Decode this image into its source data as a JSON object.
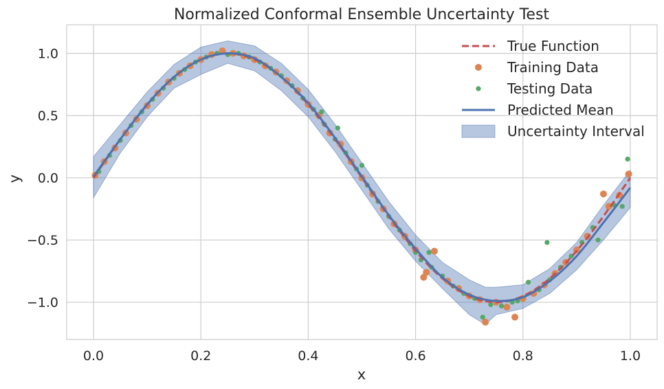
{
  "chart_data": {
    "type": "line",
    "title": "Normalized Conformal Ensemble Uncertainty Test",
    "xlabel": "x",
    "ylabel": "y",
    "xlim": [
      -0.05,
      1.05
    ],
    "ylim": [
      -1.3,
      1.23
    ],
    "xticks": [
      0.0,
      0.2,
      0.4,
      0.6,
      0.8,
      1.0
    ],
    "xtick_labels": [
      "0.0",
      "0.2",
      "0.4",
      "0.6",
      "0.8",
      "1.0"
    ],
    "yticks": [
      -1.0,
      -0.5,
      0.0,
      0.5,
      1.0
    ],
    "ytick_labels": [
      "−1.0",
      "−0.5",
      "0.0",
      "0.5",
      "1.0"
    ],
    "grid": true,
    "legend_position": "top-right",
    "colors": {
      "true_function": "#c44e52",
      "training": "#dd8452",
      "testing": "#55a868",
      "predicted": "#4c72b0",
      "band": "#4c72b0"
    },
    "series": [
      {
        "name": "True Function",
        "kind": "dashed-line",
        "function": "sin(2*pi*x)",
        "samples": 200
      },
      {
        "name": "Training Data",
        "kind": "scatter",
        "points": [
          [
            0.003,
            0.02
          ],
          [
            0.02,
            0.13
          ],
          [
            0.04,
            0.24
          ],
          [
            0.06,
            0.36
          ],
          [
            0.08,
            0.47
          ],
          [
            0.1,
            0.58
          ],
          [
            0.12,
            0.68
          ],
          [
            0.14,
            0.77
          ],
          [
            0.16,
            0.84
          ],
          [
            0.18,
            0.9
          ],
          [
            0.2,
            0.95
          ],
          [
            0.22,
            0.99
          ],
          [
            0.24,
            1.02
          ],
          [
            0.26,
            1.0
          ],
          [
            0.28,
            0.98
          ],
          [
            0.3,
            0.95
          ],
          [
            0.32,
            0.9
          ],
          [
            0.34,
            0.85
          ],
          [
            0.36,
            0.78
          ],
          [
            0.38,
            0.7
          ],
          [
            0.4,
            0.59
          ],
          [
            0.42,
            0.5
          ],
          [
            0.44,
            0.36
          ],
          [
            0.46,
            0.27
          ],
          [
            0.48,
            0.13
          ],
          [
            0.5,
            0.0
          ],
          [
            0.52,
            -0.13
          ],
          [
            0.54,
            -0.25
          ],
          [
            0.56,
            -0.37
          ],
          [
            0.58,
            -0.47
          ],
          [
            0.6,
            -0.58
          ],
          [
            0.615,
            -0.8
          ],
          [
            0.62,
            -0.76
          ],
          [
            0.635,
            -0.59
          ],
          [
            0.66,
            -0.83
          ],
          [
            0.68,
            -0.89
          ],
          [
            0.7,
            -0.95
          ],
          [
            0.72,
            -0.98
          ],
          [
            0.73,
            -1.16
          ],
          [
            0.75,
            -1.0
          ],
          [
            0.77,
            -1.04
          ],
          [
            0.785,
            -1.12
          ],
          [
            0.8,
            -0.97
          ],
          [
            0.82,
            -0.93
          ],
          [
            0.84,
            -0.86
          ],
          [
            0.86,
            -0.77
          ],
          [
            0.88,
            -0.68
          ],
          [
            0.9,
            -0.58
          ],
          [
            0.92,
            -0.47
          ],
          [
            0.95,
            -0.13
          ],
          [
            0.96,
            -0.23
          ],
          [
            0.98,
            -0.14
          ],
          [
            0.997,
            0.03
          ]
        ]
      },
      {
        "name": "Testing Data",
        "kind": "scatter",
        "points": [
          [
            0.01,
            0.05
          ],
          [
            0.03,
            0.18
          ],
          [
            0.05,
            0.3
          ],
          [
            0.07,
            0.42
          ],
          [
            0.09,
            0.53
          ],
          [
            0.11,
            0.63
          ],
          [
            0.13,
            0.72
          ],
          [
            0.15,
            0.8
          ],
          [
            0.17,
            0.87
          ],
          [
            0.19,
            0.93
          ],
          [
            0.21,
            0.97
          ],
          [
            0.23,
            1.0
          ],
          [
            0.25,
            0.99
          ],
          [
            0.27,
            1.0
          ],
          [
            0.29,
            0.97
          ],
          [
            0.31,
            0.93
          ],
          [
            0.33,
            0.88
          ],
          [
            0.35,
            0.82
          ],
          [
            0.37,
            0.74
          ],
          [
            0.39,
            0.64
          ],
          [
            0.41,
            0.55
          ],
          [
            0.425,
            0.53
          ],
          [
            0.43,
            0.43
          ],
          [
            0.45,
            0.31
          ],
          [
            0.455,
            0.4
          ],
          [
            0.47,
            0.2
          ],
          [
            0.49,
            0.07
          ],
          [
            0.5,
            0.1
          ],
          [
            0.51,
            -0.06
          ],
          [
            0.53,
            -0.19
          ],
          [
            0.55,
            -0.31
          ],
          [
            0.57,
            -0.42
          ],
          [
            0.59,
            -0.53
          ],
          [
            0.6,
            -0.6
          ],
          [
            0.61,
            -0.66
          ],
          [
            0.625,
            -0.6
          ],
          [
            0.63,
            -0.72
          ],
          [
            0.65,
            -0.79
          ],
          [
            0.67,
            -0.87
          ],
          [
            0.69,
            -0.93
          ],
          [
            0.71,
            -0.97
          ],
          [
            0.725,
            -1.12
          ],
          [
            0.74,
            -1.02
          ],
          [
            0.76,
            -1.03
          ],
          [
            0.78,
            -1.0
          ],
          [
            0.79,
            -0.99
          ],
          [
            0.81,
            -0.84
          ],
          [
            0.83,
            -0.9
          ],
          [
            0.845,
            -0.52
          ],
          [
            0.85,
            -0.82
          ],
          [
            0.87,
            -0.72
          ],
          [
            0.89,
            -0.63
          ],
          [
            0.91,
            -0.52
          ],
          [
            0.93,
            -0.4
          ],
          [
            0.94,
            -0.5
          ],
          [
            0.97,
            -0.22
          ],
          [
            0.985,
            -0.23
          ],
          [
            0.995,
            0.15
          ]
        ]
      },
      {
        "name": "Predicted Mean",
        "kind": "line",
        "points": [
          [
            0.0,
            0.01
          ],
          [
            0.05,
            0.31
          ],
          [
            0.1,
            0.59
          ],
          [
            0.15,
            0.81
          ],
          [
            0.2,
            0.95
          ],
          [
            0.25,
            1.0
          ],
          [
            0.3,
            0.96
          ],
          [
            0.35,
            0.81
          ],
          [
            0.4,
            0.6
          ],
          [
            0.45,
            0.32
          ],
          [
            0.5,
            0.01
          ],
          [
            0.55,
            -0.3
          ],
          [
            0.6,
            -0.57
          ],
          [
            0.65,
            -0.8
          ],
          [
            0.7,
            -0.94
          ],
          [
            0.75,
            -0.99
          ],
          [
            0.8,
            -0.96
          ],
          [
            0.85,
            -0.83
          ],
          [
            0.9,
            -0.63
          ],
          [
            0.95,
            -0.36
          ],
          [
            1.0,
            -0.08
          ]
        ]
      },
      {
        "name": "Uncertainty Interval",
        "kind": "band",
        "points": [
          [
            0.0,
            -0.16,
            0.17
          ],
          [
            0.05,
            0.2,
            0.43
          ],
          [
            0.1,
            0.49,
            0.69
          ],
          [
            0.15,
            0.72,
            0.91
          ],
          [
            0.2,
            0.83,
            1.05
          ],
          [
            0.25,
            0.92,
            1.1
          ],
          [
            0.3,
            0.86,
            1.06
          ],
          [
            0.35,
            0.7,
            0.92
          ],
          [
            0.4,
            0.49,
            0.71
          ],
          [
            0.45,
            0.21,
            0.43
          ],
          [
            0.5,
            -0.1,
            0.12
          ],
          [
            0.55,
            -0.41,
            -0.19
          ],
          [
            0.6,
            -0.67,
            -0.46
          ],
          [
            0.65,
            -0.89,
            -0.68
          ],
          [
            0.7,
            -1.1,
            -0.82
          ],
          [
            0.73,
            -1.18,
            -0.88
          ],
          [
            0.75,
            -1.1,
            -0.88
          ],
          [
            0.8,
            -1.05,
            -0.86
          ],
          [
            0.85,
            -0.93,
            -0.73
          ],
          [
            0.9,
            -0.74,
            -0.52
          ],
          [
            0.95,
            -0.5,
            -0.22
          ],
          [
            1.0,
            -0.24,
            0.06
          ]
        ]
      }
    ]
  }
}
